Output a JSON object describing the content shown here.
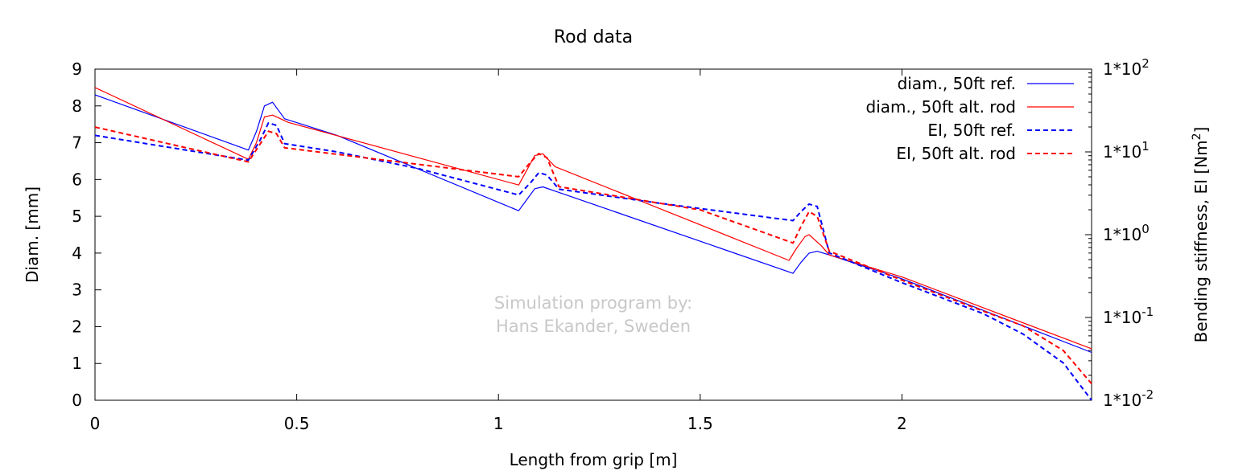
{
  "chart_data": {
    "type": "line",
    "title": "Rod data",
    "xlabel": "Length from grip [m]",
    "ylabel": "Diam. [mm]",
    "y2label_main": "Bending stiffness, EI [Nm",
    "y2label_sup": "2",
    "y2label_end": "]",
    "xlim": [
      0,
      2.47
    ],
    "ylim": [
      0,
      9
    ],
    "y2lim": [
      -2,
      2
    ],
    "y2_scale": "log",
    "grid": false,
    "legend_position": "top-right",
    "x_ticks": [
      {
        "value": 0,
        "label": "0"
      },
      {
        "value": 0.5,
        "label": "0.5"
      },
      {
        "value": 1,
        "label": "1"
      },
      {
        "value": 1.5,
        "label": "1.5"
      },
      {
        "value": 2,
        "label": "2"
      }
    ],
    "y_ticks": [
      {
        "value": 0,
        "label": "0"
      },
      {
        "value": 1,
        "label": "1"
      },
      {
        "value": 2,
        "label": "2"
      },
      {
        "value": 3,
        "label": "3"
      },
      {
        "value": 4,
        "label": "4"
      },
      {
        "value": 5,
        "label": "5"
      },
      {
        "value": 6,
        "label": "6"
      },
      {
        "value": 7,
        "label": "7"
      },
      {
        "value": 8,
        "label": "8"
      },
      {
        "value": 9,
        "label": "9"
      }
    ],
    "y2_ticks": [
      {
        "value": -2,
        "base": "1*10",
        "exp": "-2"
      },
      {
        "value": -1,
        "base": "1*10",
        "exp": "-1"
      },
      {
        "value": 0,
        "base": "1*10",
        "exp": "0"
      },
      {
        "value": 1,
        "base": "1*10",
        "exp": "1"
      },
      {
        "value": 2,
        "base": "1*10",
        "exp": "2"
      }
    ],
    "watermark": [
      "Simulation program by:",
      "Hans Ekander, Sweden"
    ],
    "series": [
      {
        "name": "diam., 50ft ref.",
        "axis": "y",
        "color": "#0000ff",
        "dash": "solid",
        "points": [
          [
            0,
            8.3
          ],
          [
            0.38,
            6.8
          ],
          [
            0.4,
            7.3
          ],
          [
            0.42,
            8.0
          ],
          [
            0.44,
            8.1
          ],
          [
            0.47,
            7.65
          ],
          [
            0.6,
            7.2
          ],
          [
            1.05,
            5.15
          ],
          [
            1.07,
            5.45
          ],
          [
            1.09,
            5.75
          ],
          [
            1.11,
            5.8
          ],
          [
            1.15,
            5.65
          ],
          [
            1.73,
            3.45
          ],
          [
            1.75,
            3.75
          ],
          [
            1.77,
            4.0
          ],
          [
            1.79,
            4.05
          ],
          [
            1.82,
            3.95
          ],
          [
            2.0,
            3.3
          ],
          [
            2.47,
            1.3
          ]
        ]
      },
      {
        "name": "diam., 50ft alt. rod",
        "axis": "y",
        "color": "#ff0000",
        "dash": "solid",
        "points": [
          [
            0,
            8.5
          ],
          [
            0.38,
            6.55
          ],
          [
            0.4,
            7.0
          ],
          [
            0.42,
            7.7
          ],
          [
            0.44,
            7.75
          ],
          [
            0.48,
            7.55
          ],
          [
            1.05,
            5.85
          ],
          [
            1.07,
            6.25
          ],
          [
            1.09,
            6.65
          ],
          [
            1.11,
            6.7
          ],
          [
            1.14,
            6.35
          ],
          [
            1.72,
            3.8
          ],
          [
            1.74,
            4.15
          ],
          [
            1.76,
            4.45
          ],
          [
            1.77,
            4.5
          ],
          [
            1.8,
            4.2
          ],
          [
            1.82,
            3.95
          ],
          [
            2.0,
            3.35
          ],
          [
            2.47,
            1.4
          ]
        ]
      },
      {
        "name": "EI, 50ft ref.",
        "axis": "y2",
        "color": "#0000ff",
        "dash": "dashed",
        "points": [
          [
            0,
            1.2
          ],
          [
            0.38,
            0.9
          ],
          [
            0.41,
            1.15
          ],
          [
            0.43,
            1.35
          ],
          [
            0.45,
            1.32
          ],
          [
            0.47,
            1.1
          ],
          [
            0.6,
            1.0
          ],
          [
            0.8,
            0.8
          ],
          [
            1.05,
            0.48
          ],
          [
            1.08,
            0.63
          ],
          [
            1.1,
            0.75
          ],
          [
            1.12,
            0.72
          ],
          [
            1.15,
            0.55
          ],
          [
            1.4,
            0.38
          ],
          [
            1.73,
            0.17
          ],
          [
            1.75,
            0.28
          ],
          [
            1.77,
            0.37
          ],
          [
            1.79,
            0.34
          ],
          [
            1.82,
            -0.22
          ],
          [
            2.0,
            -0.58
          ],
          [
            2.2,
            -0.95
          ],
          [
            2.3,
            -1.2
          ],
          [
            2.4,
            -1.55
          ],
          [
            2.47,
            -2.0
          ]
        ]
      },
      {
        "name": "EI, 50ft alt. rod",
        "axis": "y2",
        "color": "#ff0000",
        "dash": "dashed",
        "points": [
          [
            0,
            1.3
          ],
          [
            0.38,
            0.88
          ],
          [
            0.41,
            1.1
          ],
          [
            0.43,
            1.25
          ],
          [
            0.45,
            1.22
          ],
          [
            0.47,
            1.05
          ],
          [
            0.8,
            0.85
          ],
          [
            1.05,
            0.7
          ],
          [
            1.08,
            0.88
          ],
          [
            1.1,
            0.98
          ],
          [
            1.12,
            0.93
          ],
          [
            1.15,
            0.58
          ],
          [
            1.5,
            0.3
          ],
          [
            1.73,
            -0.1
          ],
          [
            1.75,
            0.1
          ],
          [
            1.77,
            0.28
          ],
          [
            1.79,
            0.22
          ],
          [
            1.82,
            -0.2
          ],
          [
            2.0,
            -0.55
          ],
          [
            2.2,
            -0.92
          ],
          [
            2.3,
            -1.1
          ],
          [
            2.4,
            -1.4
          ],
          [
            2.47,
            -1.8
          ]
        ]
      }
    ]
  }
}
